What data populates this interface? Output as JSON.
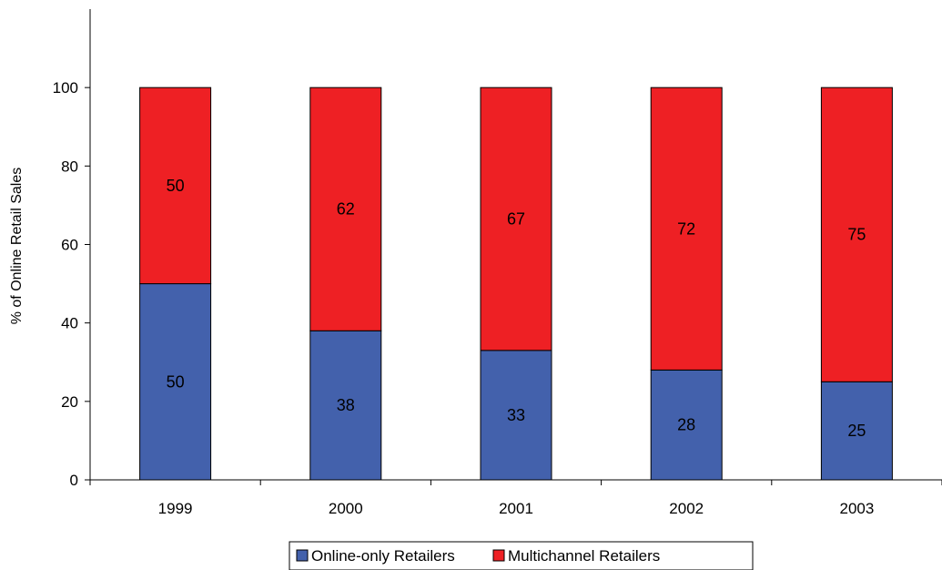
{
  "chart_data": {
    "type": "bar",
    "stacked": true,
    "title": "",
    "xlabel": "",
    "ylabel": "% of Online Retail Sales",
    "categories": [
      "1999",
      "2000",
      "2001",
      "2002",
      "2003"
    ],
    "series": [
      {
        "name": "Online-only Retailers",
        "color": "#4361AC",
        "values": [
          50,
          38,
          33,
          28,
          25
        ]
      },
      {
        "name": "Multichannel Retailers",
        "color": "#EE2024",
        "values": [
          50,
          62,
          67,
          72,
          75
        ]
      }
    ],
    "ylim": [
      0,
      120
    ],
    "yticks": [
      0,
      20,
      40,
      60,
      80,
      100
    ],
    "grid": false,
    "legend_position": "bottom"
  }
}
